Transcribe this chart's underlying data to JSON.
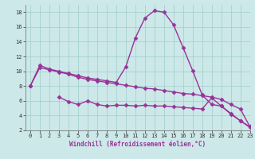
{
  "line1_x": [
    0,
    1,
    2,
    3,
    4,
    5,
    6,
    7,
    8,
    9,
    10,
    11,
    12,
    13,
    14,
    15,
    16,
    17,
    18,
    19,
    20,
    21,
    22,
    23
  ],
  "line1_y": [
    8.0,
    10.8,
    10.3,
    10.0,
    9.7,
    9.4,
    9.1,
    8.9,
    8.7,
    8.5,
    10.6,
    14.5,
    17.2,
    18.2,
    18.0,
    16.3,
    13.2,
    10.1,
    6.8,
    5.5,
    5.3,
    4.3,
    3.3,
    2.5
  ],
  "line2_x": [
    0,
    1,
    2,
    3,
    4,
    5,
    6,
    7,
    8,
    9,
    10,
    11,
    12,
    13,
    14,
    15,
    16,
    17,
    18,
    19,
    20,
    21,
    22,
    23
  ],
  "line2_y": [
    8.0,
    10.5,
    10.2,
    9.9,
    9.6,
    9.2,
    8.9,
    8.7,
    8.5,
    8.3,
    8.1,
    7.9,
    7.7,
    7.6,
    7.4,
    7.2,
    7.0,
    6.9,
    6.7,
    6.5,
    6.2,
    5.5,
    4.9,
    2.5
  ],
  "line3_x": [
    3,
    4,
    5,
    6,
    7,
    8,
    9,
    10,
    11,
    12,
    13,
    14,
    15,
    16,
    17,
    18,
    19,
    20,
    21,
    22,
    23
  ],
  "line3_y": [
    6.5,
    5.9,
    5.5,
    6.0,
    5.5,
    5.3,
    5.4,
    5.4,
    5.3,
    5.4,
    5.3,
    5.3,
    5.2,
    5.1,
    5.0,
    4.9,
    6.4,
    5.3,
    4.2,
    3.3,
    2.4
  ],
  "color": "#993399",
  "bg_color": "#cce8e8",
  "grid_color": "#a0cccc",
  "xlabel": "Windchill (Refroidissement éolien,°C)",
  "xlim": [
    -0.5,
    23
  ],
  "ylim": [
    2,
    19
  ],
  "yticks": [
    2,
    4,
    6,
    8,
    10,
    12,
    14,
    16,
    18
  ],
  "xticks": [
    0,
    1,
    2,
    3,
    4,
    5,
    6,
    7,
    8,
    9,
    10,
    11,
    12,
    13,
    14,
    15,
    16,
    17,
    18,
    19,
    20,
    21,
    22,
    23
  ],
  "marker": "D",
  "markersize": 2.5,
  "linewidth": 1.0,
  "tick_fontsize": 5.0,
  "xlabel_fontsize": 5.5
}
